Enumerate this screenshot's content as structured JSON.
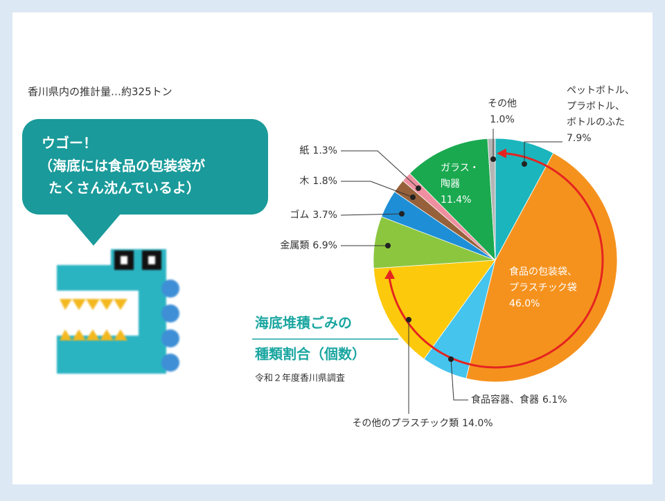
{
  "note": "香川県内の推計量…約325トン",
  "speech_bubble": {
    "lines": [
      "ウゴー！",
      "（海底には食品の包装袋が",
      "たくさん沈んでいるよ）"
    ]
  },
  "chart_data": {
    "type": "pie",
    "title": [
      "海底堆積ごみの",
      "種類割合（個数）"
    ],
    "subtitle": "令和２年度香川県調査",
    "categories": [
      [
        "ペットボトル、",
        "プラボトル、",
        "ボトルのふた"
      ],
      [
        "食品の包装袋、",
        "プラスチック袋"
      ],
      [
        "食品容器、食器"
      ],
      [
        "その他のプラスチック類"
      ],
      [
        "金属類"
      ],
      [
        "ゴム"
      ],
      [
        "木"
      ],
      [
        "紙"
      ],
      [
        "ガラス・",
        "陶器"
      ],
      [
        "その他"
      ]
    ],
    "values": [
      7.9,
      46.0,
      6.1,
      14.0,
      6.9,
      3.7,
      1.8,
      1.3,
      11.4,
      1.0
    ],
    "value_labels": [
      "7.9%",
      "46.0%",
      "6.1%",
      "14.0%",
      "6.9%",
      "3.7%",
      "1.8%",
      "1.3%",
      "11.4%",
      "1.0%"
    ],
    "colors": [
      "#1bb5bd",
      "#f5921e",
      "#45c4ee",
      "#fdc90c",
      "#8cc63f",
      "#1e8fd6",
      "#96613a",
      "#ef8fa0",
      "#1aa94f",
      "#b5b5b5"
    ]
  }
}
